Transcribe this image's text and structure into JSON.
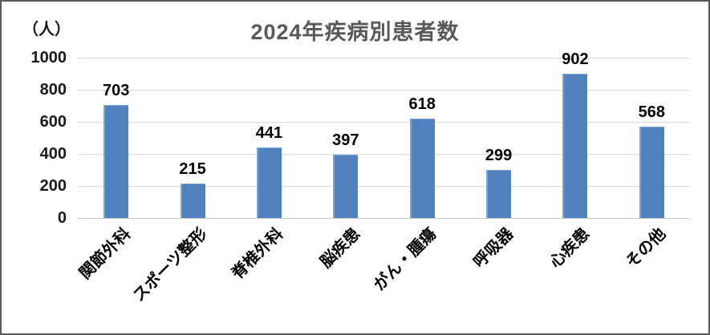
{
  "chart": {
    "title": "2024年疾病別患者数",
    "unit_label": "（人）",
    "colors": {
      "bar_fill": "#4F81BD",
      "bar_highlight": "#7EA6D4",
      "gridline": "#D9D9D9",
      "title_text": "#595959",
      "axis_text": "#1A1A1A",
      "frame_border": "#595959",
      "background": "#FFFFFF"
    }
  },
  "chart_data": {
    "type": "bar",
    "title": "2024年疾病別患者数",
    "unit": "（人）",
    "categories": [
      "関節外科",
      "スポーツ整形",
      "脊椎外科",
      "脳疾患",
      "がん・腫瘍",
      "呼吸器",
      "心疾患",
      "その他"
    ],
    "values": [
      703,
      215,
      441,
      397,
      618,
      299,
      902,
      568
    ],
    "xlabel": "",
    "ylabel": "（人）",
    "ylim": [
      0,
      1000
    ],
    "yticks": [
      0,
      200,
      400,
      600,
      800,
      1000
    ],
    "grid": true,
    "legend": "none",
    "x_tick_rotation_deg": 45,
    "bar_color": "#4F81BD"
  }
}
